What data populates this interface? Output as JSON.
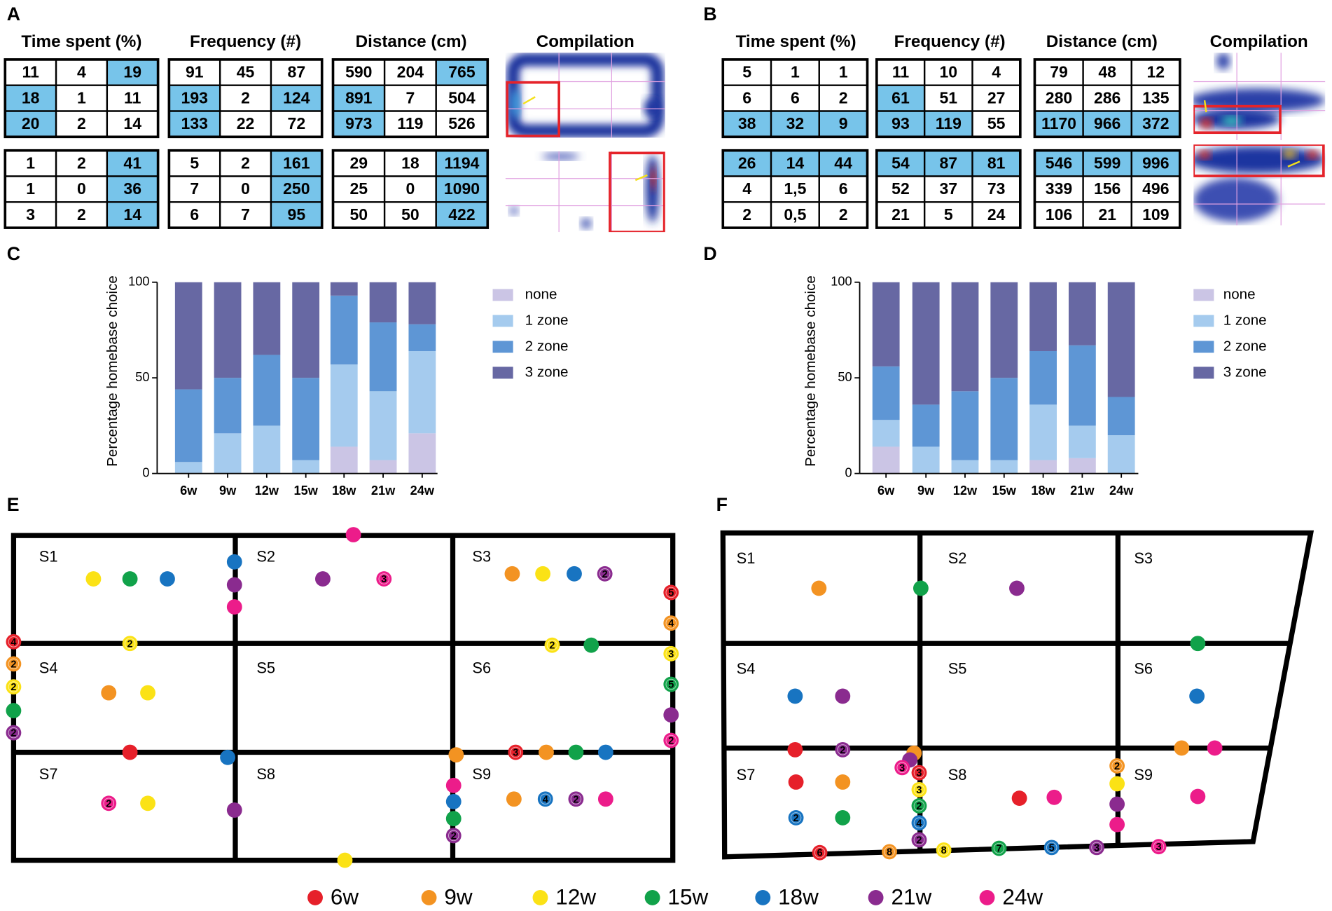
{
  "panel_labels": [
    "A",
    "B",
    "C",
    "D",
    "E",
    "F"
  ],
  "table_panels": [
    {
      "compilation_title": "Compilation",
      "tables": [
        {
          "title": "Time spent (%)",
          "blocks": [
            {
              "cells": [
                [
                  11,
                  4,
                  19
                ],
                [
                  18,
                  1,
                  11
                ],
                [
                  20,
                  2,
                  14
                ]
              ],
              "highlight": [
                [
                  0,
                  2
                ],
                [
                  1,
                  0
                ],
                [
                  2,
                  0
                ]
              ]
            },
            {
              "cells": [
                [
                  1,
                  2,
                  41
                ],
                [
                  1,
                  0,
                  36
                ],
                [
                  3,
                  2,
                  14
                ]
              ],
              "highlight": [
                [
                  0,
                  2
                ],
                [
                  1,
                  2
                ],
                [
                  2,
                  2
                ]
              ]
            }
          ]
        },
        {
          "title": "Frequency (#)",
          "blocks": [
            {
              "cells": [
                [
                  91,
                  45,
                  87
                ],
                [
                  193,
                  2,
                  124
                ],
                [
                  133,
                  22,
                  72
                ]
              ],
              "highlight": [
                [
                  1,
                  0
                ],
                [
                  1,
                  2
                ],
                [
                  2,
                  0
                ]
              ]
            },
            {
              "cells": [
                [
                  5,
                  2,
                  161
                ],
                [
                  7,
                  0,
                  250
                ],
                [
                  6,
                  7,
                  95
                ]
              ],
              "highlight": [
                [
                  0,
                  2
                ],
                [
                  1,
                  2
                ],
                [
                  2,
                  2
                ]
              ]
            }
          ]
        },
        {
          "title": "Distance (cm)",
          "blocks": [
            {
              "cells": [
                [
                  590,
                  204,
                  765
                ],
                [
                  891,
                  7,
                  504
                ],
                [
                  973,
                  119,
                  526
                ]
              ],
              "highlight": [
                [
                  0,
                  2
                ],
                [
                  1,
                  0
                ],
                [
                  2,
                  0
                ]
              ]
            },
            {
              "cells": [
                [
                  29,
                  18,
                  1194
                ],
                [
                  25,
                  0,
                  1090
                ],
                [
                  50,
                  50,
                  422
                ]
              ],
              "highlight": [
                [
                  0,
                  2
                ],
                [
                  1,
                  2
                ],
                [
                  2,
                  2
                ]
              ]
            }
          ]
        }
      ]
    },
    {
      "compilation_title": "Compilation",
      "tables": [
        {
          "title": "Time spent (%)",
          "blocks": [
            {
              "cells": [
                [
                  5,
                  1,
                  1
                ],
                [
                  6,
                  6,
                  2
                ],
                [
                  38,
                  32,
                  9
                ]
              ],
              "highlight": [
                [
                  2,
                  0
                ],
                [
                  2,
                  1
                ],
                [
                  2,
                  2
                ]
              ]
            },
            {
              "cells": [
                [
                  26,
                  14,
                  44
                ],
                [
                  4,
                  "1,5",
                  6
                ],
                [
                  2,
                  "0,5",
                  2
                ]
              ],
              "highlight": [
                [
                  0,
                  0
                ],
                [
                  0,
                  1
                ],
                [
                  0,
                  2
                ]
              ]
            }
          ]
        },
        {
          "title": "Frequency (#)",
          "blocks": [
            {
              "cells": [
                [
                  11,
                  10,
                  4
                ],
                [
                  61,
                  51,
                  27
                ],
                [
                  93,
                  119,
                  55
                ]
              ],
              "highlight": [
                [
                  1,
                  0
                ],
                [
                  2,
                  0
                ],
                [
                  2,
                  1
                ]
              ]
            },
            {
              "cells": [
                [
                  54,
                  87,
                  81
                ],
                [
                  52,
                  37,
                  73
                ],
                [
                  21,
                  5,
                  24
                ]
              ],
              "highlight": [
                [
                  0,
                  0
                ],
                [
                  0,
                  1
                ],
                [
                  0,
                  2
                ]
              ]
            }
          ]
        },
        {
          "title": "Distance (cm)",
          "blocks": [
            {
              "cells": [
                [
                  79,
                  48,
                  12
                ],
                [
                  280,
                  286,
                  135
                ],
                [
                  1170,
                  966,
                  372
                ]
              ],
              "highlight": [
                [
                  2,
                  0
                ],
                [
                  2,
                  1
                ],
                [
                  2,
                  2
                ]
              ]
            },
            {
              "cells": [
                [
                  546,
                  599,
                  996
                ],
                [
                  339,
                  156,
                  496
                ],
                [
                  106,
                  21,
                  109
                ]
              ],
              "highlight": [
                [
                  0,
                  0
                ],
                [
                  0,
                  1
                ],
                [
                  0,
                  2
                ]
              ]
            }
          ]
        }
      ]
    }
  ],
  "highlight_color": "#77c4ea",
  "chart_data": [
    {
      "type": "bar",
      "stacked": true,
      "ylabel": "Percentage homebase choice",
      "legend": "right",
      "categories": [
        "6w",
        "9w",
        "12w",
        "15w",
        "18w",
        "21w",
        "24w"
      ],
      "ylim": [
        0,
        100
      ],
      "yticks": [
        0,
        50,
        100
      ],
      "series": [
        {
          "name": "none",
          "color": "#cbc5e5",
          "values": [
            0,
            0,
            0,
            0,
            14,
            7,
            21
          ]
        },
        {
          "name": "1 zone",
          "color": "#a5cbee",
          "values": [
            6,
            21,
            25,
            7,
            43,
            36,
            43
          ]
        },
        {
          "name": "2 zone",
          "color": "#5e96d5",
          "values": [
            38,
            29,
            37,
            43,
            36,
            36,
            14
          ]
        },
        {
          "name": "3 zone",
          "color": "#6768a3",
          "values": [
            56,
            50,
            38,
            50,
            7,
            21,
            22
          ]
        }
      ]
    },
    {
      "type": "bar",
      "stacked": true,
      "ylabel": "Percentage homebase choice",
      "legend": "right",
      "categories": [
        "6w",
        "9w",
        "12w",
        "15w",
        "18w",
        "21w",
        "24w"
      ],
      "ylim": [
        0,
        100
      ],
      "yticks": [
        0,
        50,
        100
      ],
      "series": [
        {
          "name": "none",
          "color": "#cbc5e5",
          "values": [
            14,
            0,
            0,
            0,
            7,
            8,
            0
          ]
        },
        {
          "name": "1 zone",
          "color": "#a5cbee",
          "values": [
            14,
            14,
            7,
            7,
            29,
            17,
            20
          ]
        },
        {
          "name": "2 zone",
          "color": "#5e96d5",
          "values": [
            28,
            22,
            36,
            43,
            28,
            42,
            20
          ]
        },
        {
          "name": "3 zone",
          "color": "#6768a3",
          "values": [
            44,
            64,
            57,
            50,
            36,
            33,
            60
          ]
        }
      ]
    }
  ],
  "maps": [
    {
      "zones": [
        "S1",
        "S2",
        "S3",
        "S4",
        "S5",
        "S6",
        "S7",
        "S8",
        "S9"
      ],
      "dots": [
        {
          "color": "#fbe216"
        },
        {
          "color": "#11a24a"
        },
        {
          "color": "#1874c1"
        },
        {
          "color": "#1874c1"
        },
        {
          "color": "#8a2b8f"
        },
        {
          "color": "#ec1c8a"
        },
        {
          "color": "#ec1c8a"
        },
        {
          "color": "#8a2b8f"
        },
        {
          "color": "#ec1c8a",
          "label": "3"
        },
        {
          "color": "#f39322"
        },
        {
          "color": "#fbe216"
        },
        {
          "color": "#1874c1"
        },
        {
          "color": "#8a2b8f",
          "label": "2"
        },
        {
          "color": "#e6202a",
          "label": "5"
        },
        {
          "color": "#f39322",
          "label": "4"
        },
        {
          "color": "#fbe216",
          "label": "3"
        },
        {
          "color": "#11a24a",
          "label": "5"
        },
        {
          "color": "#8a2b8f"
        },
        {
          "color": "#ec1c8a",
          "label": "2"
        },
        {
          "color": "#e6202a",
          "label": "4"
        },
        {
          "color": "#f39322",
          "label": "2"
        },
        {
          "color": "#fbe216",
          "label": "2"
        },
        {
          "color": "#11a24a"
        },
        {
          "color": "#8a2b8f",
          "label": "2"
        },
        {
          "color": "#fbe216",
          "label": "2"
        },
        {
          "color": "#fbe216",
          "label": "2"
        },
        {
          "color": "#11a24a"
        },
        {
          "color": "#f39322"
        },
        {
          "color": "#fbe216"
        },
        {
          "color": "#e6202a"
        },
        {
          "color": "#1874c1"
        },
        {
          "color": "#f39322"
        },
        {
          "color": "#e6202a",
          "label": "3"
        },
        {
          "color": "#f39322"
        },
        {
          "color": "#11a24a"
        },
        {
          "color": "#1874c1"
        },
        {
          "color": "#ec1c8a",
          "label": "2"
        },
        {
          "color": "#fbe216"
        },
        {
          "color": "#8a2b8f"
        },
        {
          "color": "#ec1c8a"
        },
        {
          "color": "#1874c1"
        },
        {
          "color": "#11a24a"
        },
        {
          "color": "#8a2b8f",
          "label": "2"
        },
        {
          "color": "#f39322"
        },
        {
          "color": "#1874c1",
          "label": "4"
        },
        {
          "color": "#8a2b8f",
          "label": "2"
        },
        {
          "color": "#ec1c8a"
        },
        {
          "color": "#fbe216"
        }
      ]
    },
    {
      "zones": [
        "S1",
        "S2",
        "S3",
        "S4",
        "S5",
        "S6",
        "S7",
        "S8",
        "S9"
      ],
      "dots": [
        {
          "color": "#f39322"
        },
        {
          "color": "#11a24a"
        },
        {
          "color": "#8a2b8f"
        },
        {
          "color": "#11a24a"
        },
        {
          "color": "#1874c1"
        },
        {
          "color": "#8a2b8f"
        },
        {
          "color": "#1874c1"
        },
        {
          "color": "#e6202a"
        },
        {
          "color": "#8a2b8f",
          "label": "2"
        },
        {
          "color": "#f39322"
        },
        {
          "color": "#8a2b8f"
        },
        {
          "color": "#ec1c8a",
          "label": "3"
        },
        {
          "color": "#e6202a",
          "label": "3"
        },
        {
          "color": "#fbe216",
          "label": "3"
        },
        {
          "color": "#11a24a",
          "label": "2"
        },
        {
          "color": "#1874c1",
          "label": "4"
        },
        {
          "color": "#8a2b8f",
          "label": "2"
        },
        {
          "color": "#f39322"
        },
        {
          "color": "#ec1c8a"
        },
        {
          "color": "#e6202a"
        },
        {
          "color": "#f39322"
        },
        {
          "color": "#1874c1",
          "label": "2"
        },
        {
          "color": "#11a24a"
        },
        {
          "color": "#e6202a"
        },
        {
          "color": "#ec1c8a"
        },
        {
          "color": "#f39322",
          "label": "2"
        },
        {
          "color": "#fbe216"
        },
        {
          "color": "#8a2b8f"
        },
        {
          "color": "#ec1c8a"
        },
        {
          "color": "#ec1c8a"
        },
        {
          "color": "#e6202a",
          "label": "6"
        },
        {
          "color": "#f39322",
          "label": "8"
        },
        {
          "color": "#fbe216",
          "label": "8"
        },
        {
          "color": "#11a24a",
          "label": "7"
        },
        {
          "color": "#1874c1",
          "label": "5"
        },
        {
          "color": "#8a2b8f",
          "label": "3"
        },
        {
          "color": "#ec1c8a",
          "label": "3"
        }
      ]
    }
  ],
  "legend": [
    {
      "name": "6w",
      "color": "#e6202a"
    },
    {
      "name": "9w",
      "color": "#f39322"
    },
    {
      "name": "12w",
      "color": "#fbe216"
    },
    {
      "name": "15w",
      "color": "#11a24a"
    },
    {
      "name": "18w",
      "color": "#1874c1"
    },
    {
      "name": "21w",
      "color": "#8a2b8f"
    },
    {
      "name": "24w",
      "color": "#ec1c8a"
    }
  ]
}
